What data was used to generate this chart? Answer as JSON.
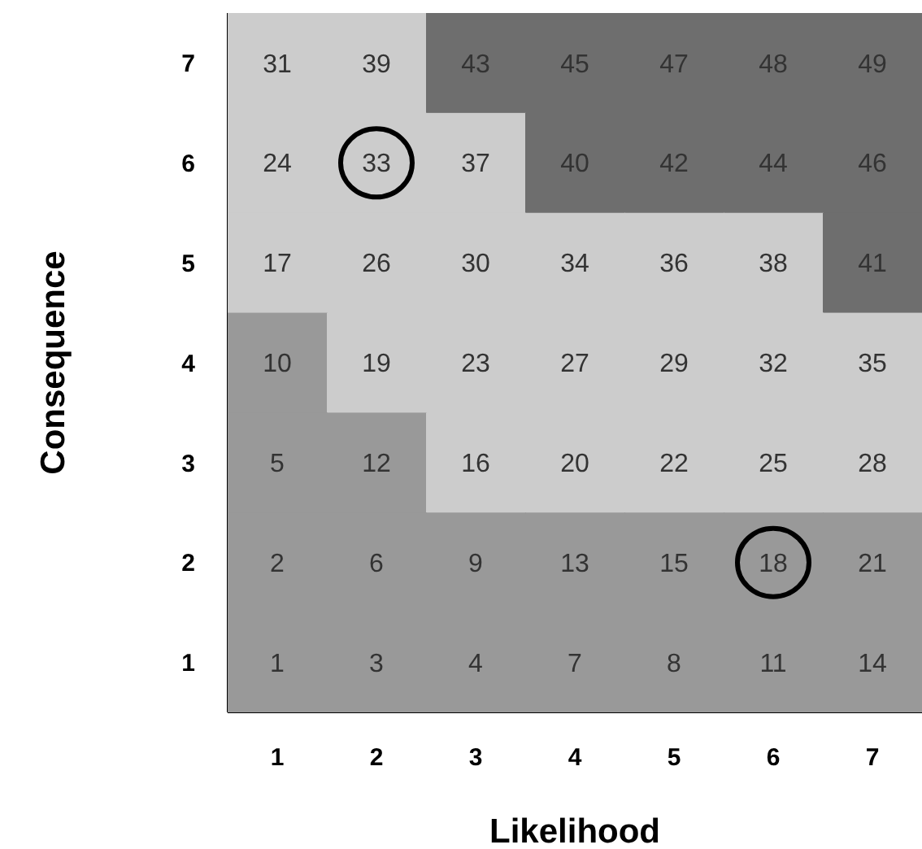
{
  "chart_data": {
    "type": "heatmap",
    "xlabel": "Likelihood",
    "ylabel": "Consequence",
    "categories": [
      "1",
      "2",
      "3",
      "4",
      "5",
      "6",
      "7"
    ],
    "y_categories": [
      "7",
      "6",
      "5",
      "4",
      "3",
      "2",
      "1"
    ],
    "cells": [
      [
        31,
        39,
        43,
        45,
        47,
        48,
        49
      ],
      [
        24,
        33,
        37,
        40,
        42,
        44,
        46
      ],
      [
        17,
        26,
        30,
        34,
        36,
        38,
        41
      ],
      [
        10,
        19,
        23,
        27,
        29,
        32,
        35
      ],
      [
        5,
        12,
        16,
        20,
        22,
        25,
        28
      ],
      [
        2,
        6,
        9,
        13,
        15,
        18,
        21
      ],
      [
        1,
        3,
        4,
        7,
        8,
        11,
        14
      ]
    ],
    "colors": [
      [
        "#cccccc",
        "#cccccc",
        "#6e6e6e",
        "#6e6e6e",
        "#6e6e6e",
        "#6e6e6e",
        "#6e6e6e"
      ],
      [
        "#cccccc",
        "#cccccc",
        "#cccccc",
        "#6e6e6e",
        "#6e6e6e",
        "#6e6e6e",
        "#6e6e6e"
      ],
      [
        "#cccccc",
        "#cccccc",
        "#cccccc",
        "#cccccc",
        "#cccccc",
        "#cccccc",
        "#6e6e6e"
      ],
      [
        "#999999",
        "#cccccc",
        "#cccccc",
        "#cccccc",
        "#cccccc",
        "#cccccc",
        "#cccccc"
      ],
      [
        "#999999",
        "#999999",
        "#cccccc",
        "#cccccc",
        "#cccccc",
        "#cccccc",
        "#cccccc"
      ],
      [
        "#999999",
        "#999999",
        "#999999",
        "#999999",
        "#999999",
        "#999999",
        "#999999"
      ],
      [
        "#999999",
        "#999999",
        "#999999",
        "#999999",
        "#999999",
        "#999999",
        "#999999"
      ]
    ],
    "data_labels": true
  }
}
